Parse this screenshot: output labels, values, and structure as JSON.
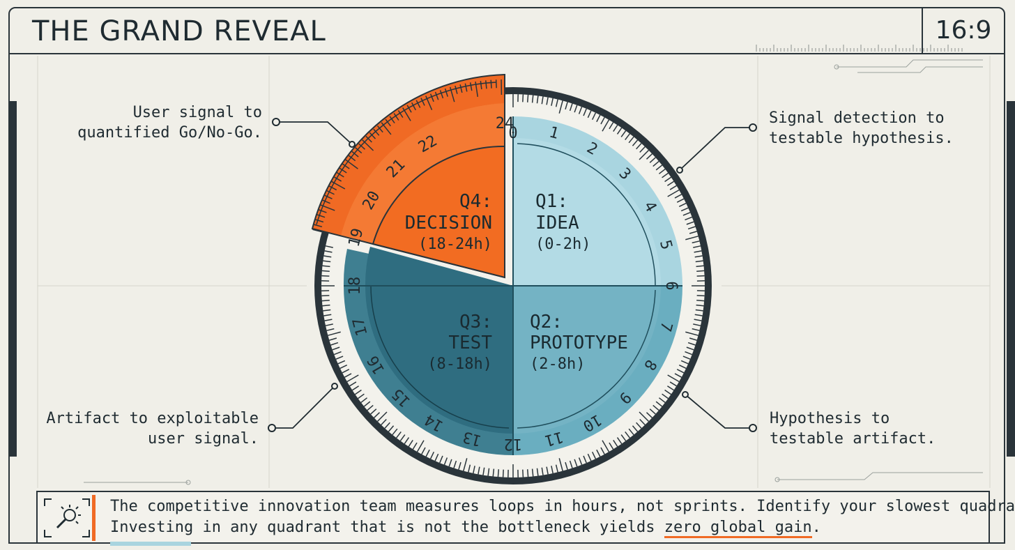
{
  "header": {
    "title": "THE GRAND REVEAL",
    "aspect_ratio": "16:9"
  },
  "dial": {
    "quadrants": [
      {
        "id": "q1",
        "label": "Q1:",
        "name": "IDEA",
        "range": "(0-2h)"
      },
      {
        "id": "q2",
        "label": "Q2:",
        "name": "PROTOTYPE",
        "range": "(2-8h)"
      },
      {
        "id": "q3",
        "label": "Q3:",
        "name": "TEST",
        "range": "(8-18h)"
      },
      {
        "id": "q4",
        "label": "Q4:",
        "name": "DECISION",
        "range": "(18-24h)"
      }
    ],
    "hour_numbers": [
      "0",
      "1",
      "2",
      "3",
      "4",
      "5",
      "6",
      "7",
      "8",
      "9",
      "10",
      "11",
      "12",
      "13",
      "14",
      "15",
      "16",
      "17",
      "18",
      "19",
      "20",
      "21",
      "22",
      "24"
    ]
  },
  "callouts": {
    "top_left": {
      "line1": "User signal to",
      "line2": "quantified Go/No-Go."
    },
    "top_right": {
      "line1": "Signal detection to",
      "line2": "testable hypothesis."
    },
    "bottom_left": {
      "line1": "Artifact to exploitable",
      "line2": "user signal."
    },
    "bottom_right": {
      "line1": "Hypothesis to",
      "line2": "testable artifact."
    }
  },
  "footer": {
    "line1": "The competitive innovation team measures loops in hours, not sprints. Identify your slowest quadrant.",
    "line2_prefix": "Investing in any quadrant that is not the bottleneck yields ",
    "line2_highlight": "zero global gain",
    "line2_suffix": "."
  },
  "colors": {
    "orange": "#f06a24",
    "light_blue": "#a9d5e0",
    "mid_blue": "#5fa6b8",
    "teal": "#3f7f91",
    "dark_teal": "#2f6d80",
    "frame": "#2a343a"
  }
}
